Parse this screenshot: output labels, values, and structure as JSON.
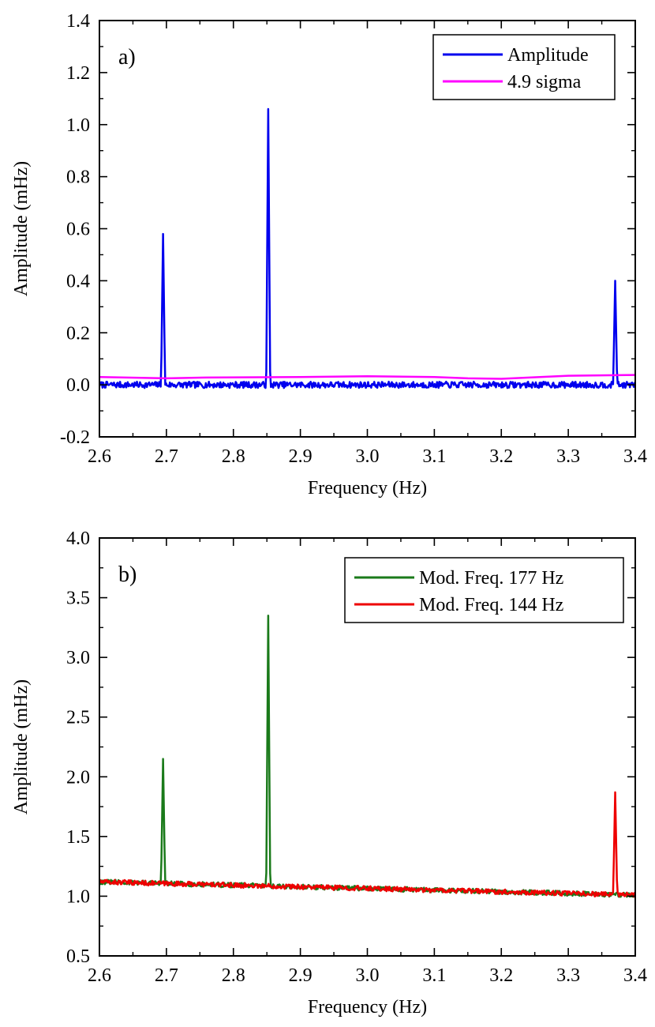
{
  "chart_data": [
    {
      "type": "line",
      "panel_label": "a)",
      "xlabel": "Frequency (Hz)",
      "ylabel": "Amplitude (mHz)",
      "xlim": [
        2.6,
        3.4
      ],
      "ylim": [
        -0.2,
        1.4
      ],
      "xticks": [
        "2.6",
        "2.7",
        "2.8",
        "2.9",
        "3.0",
        "3.1",
        "3.2",
        "3.3",
        "3.4"
      ],
      "yticks": [
        "-0.2",
        "0.0",
        "0.2",
        "0.4",
        "0.6",
        "0.8",
        "1.0",
        "1.2",
        "1.4"
      ],
      "legend_position": "top-right",
      "series": [
        {
          "name": "Amplitude",
          "color": "#0000ee",
          "baseline": 0.0,
          "noise": 0.012,
          "peaks": [
            [
              2.695,
              0.58
            ],
            [
              2.852,
              1.06
            ],
            [
              3.37,
              0.4
            ]
          ],
          "peak_width": 0.003
        },
        {
          "name": "4.9 sigma",
          "color": "#ff00ff",
          "x": [
            2.6,
            2.7,
            2.76,
            2.9,
            3.0,
            3.1,
            3.15,
            3.2,
            3.3,
            3.4
          ],
          "y": [
            0.03,
            0.025,
            0.028,
            0.03,
            0.033,
            0.03,
            0.025,
            0.023,
            0.035,
            0.038
          ]
        }
      ]
    },
    {
      "type": "line",
      "panel_label": "b)",
      "xlabel": "Frequency (Hz)",
      "ylabel": "Amplitude (mHz)",
      "xlim": [
        2.6,
        3.4
      ],
      "ylim": [
        0.5,
        4.0
      ],
      "xticks": [
        "2.6",
        "2.7",
        "2.8",
        "2.9",
        "3.0",
        "3.1",
        "3.2",
        "3.3",
        "3.4"
      ],
      "yticks": [
        "0.5",
        "1.0",
        "1.5",
        "2.0",
        "2.5",
        "3.0",
        "3.5",
        "4.0"
      ],
      "legend_position": "top-right",
      "series": [
        {
          "name": "Mod. Freq. 177 Hz",
          "color": "#1a7a1a",
          "baseline_start": 1.12,
          "baseline_end": 1.01,
          "noise": 0.02,
          "peaks": [
            [
              2.695,
              2.15
            ],
            [
              2.852,
              3.35
            ]
          ],
          "peak_width": 0.003
        },
        {
          "name": "Mod. Freq. 144 Hz",
          "color": "#ee0000",
          "baseline_start": 1.12,
          "baseline_end": 1.01,
          "noise": 0.02,
          "peaks": [
            [
              3.37,
              1.87
            ]
          ],
          "peak_width": 0.003
        }
      ]
    }
  ]
}
